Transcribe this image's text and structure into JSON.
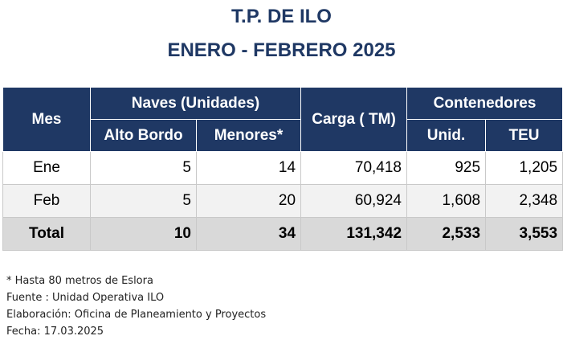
{
  "title": {
    "line1": "T.P. DE ILO",
    "line2": "ENERO - FEBRERO 2025"
  },
  "table": {
    "headers": {
      "mes": "Mes",
      "naves": "Naves (Unidades)",
      "alto_bordo": "Alto Bordo",
      "menores": "Menores*",
      "carga": "Carga ( TM)",
      "contenedores": "Contenedores",
      "unid": "Unid.",
      "teu": "TEU"
    },
    "rows": [
      {
        "mes": "Ene",
        "alto_bordo": "5",
        "menores": "14",
        "carga": "70,418",
        "unid": "925",
        "teu": "1,205"
      },
      {
        "mes": "Feb",
        "alto_bordo": "5",
        "menores": "20",
        "carga": "60,924",
        "unid": "1,608",
        "teu": "2,348"
      }
    ],
    "total": {
      "mes": "Total",
      "alto_bordo": "10",
      "menores": "34",
      "carga": "131,342",
      "unid": "2,533",
      "teu": "3,553"
    }
  },
  "notes": {
    "n1": "* Hasta 80 metros de Eslora",
    "n2": "Fuente : Unidad Operativa ILO",
    "n3": "Elaboración: Oficina de Planeamiento y Proyectos",
    "n4": "Fecha: 17.03.2025"
  },
  "colors": {
    "header_bg": "#1f3864",
    "title": "#1f3864",
    "total_bg": "#d9d9d9",
    "alt_row_bg": "#f2f2f2"
  }
}
